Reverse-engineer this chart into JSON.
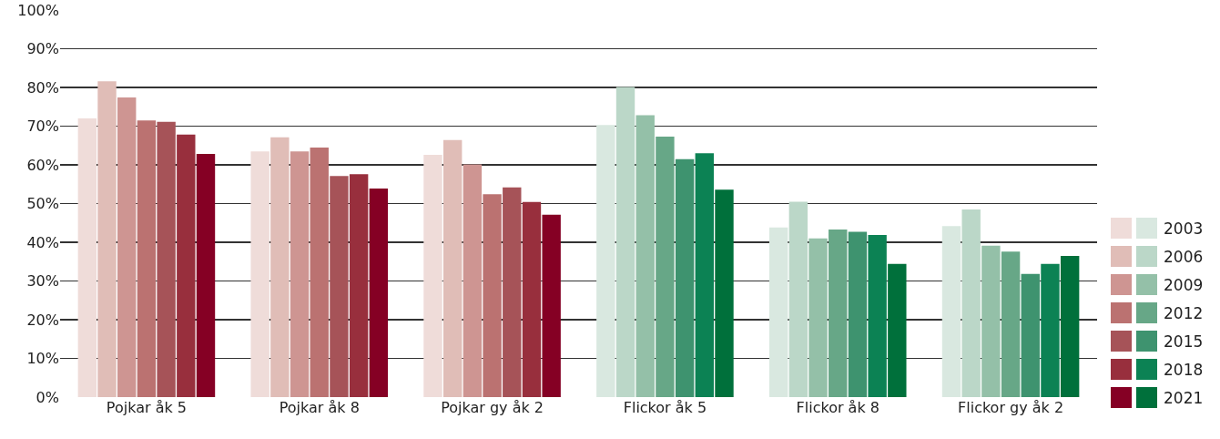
{
  "chart_data": {
    "type": "bar",
    "categories": [
      "Pojkar åk 5",
      "Pojkar åk 8",
      "Pojkar gy åk 2",
      "Flickor åk 5",
      "Flickor åk 8",
      "Flickor gy åk 2"
    ],
    "series": [
      {
        "name": "2003",
        "colors": [
          "#efdcd9",
          "#efdcd9",
          "#efdcd9",
          "#d9e8e0",
          "#d9e8e0",
          "#d9e8e0"
        ],
        "values": [
          72.0,
          63.5,
          62.6,
          70.3,
          43.8,
          44.2
        ]
      },
      {
        "name": "2006",
        "colors": [
          "#e0bdb7",
          "#e0bdb7",
          "#e0bdb7",
          "#bbd7c8",
          "#bbd7c8",
          "#bbd7c8"
        ],
        "values": [
          81.6,
          67.1,
          66.4,
          80.1,
          50.5,
          48.5
        ]
      },
      {
        "name": "2009",
        "colors": [
          "#ce9592",
          "#ce9592",
          "#ce9592",
          "#94c0a8",
          "#94c0a8",
          "#94c0a8"
        ],
        "values": [
          77.4,
          63.5,
          60.1,
          72.8,
          41.0,
          39.1
        ]
      },
      {
        "name": "2012",
        "colors": [
          "#bb7271",
          "#bb7271",
          "#bb7271",
          "#67a787",
          "#67a787",
          "#67a787"
        ],
        "values": [
          71.5,
          64.5,
          52.4,
          67.3,
          43.3,
          37.6
        ]
      },
      {
        "name": "2015",
        "colors": [
          "#a65358",
          "#a65358",
          "#a65358",
          "#3e936f",
          "#3e936f",
          "#3e936f"
        ],
        "values": [
          71.1,
          57.1,
          54.2,
          61.5,
          42.7,
          31.8
        ]
      },
      {
        "name": "2018",
        "colors": [
          "#982f3d",
          "#982f3d",
          "#982f3d",
          "#0c8254",
          "#0c8254",
          "#0c8254"
        ],
        "values": [
          67.8,
          57.6,
          50.4,
          63.0,
          41.9,
          34.4
        ]
      },
      {
        "name": "2021",
        "colors": [
          "#850024",
          "#850024",
          "#850024",
          "#00703b",
          "#00703b",
          "#00703b"
        ],
        "values": [
          62.8,
          53.9,
          47.1,
          53.6,
          34.4,
          36.5
        ]
      }
    ],
    "ylim": [
      0,
      100
    ],
    "yticks": [
      {
        "value": 0,
        "label": "0%"
      },
      {
        "value": 10,
        "label": "10%"
      },
      {
        "value": 20,
        "label": "20%"
      },
      {
        "value": 30,
        "label": "30%"
      },
      {
        "value": 40,
        "label": "40%"
      },
      {
        "value": 50,
        "label": "50%"
      },
      {
        "value": 60,
        "label": "60%"
      },
      {
        "value": 70,
        "label": "70%"
      },
      {
        "value": 80,
        "label": "80%"
      },
      {
        "value": 90,
        "label": "90%"
      },
      {
        "value": 100,
        "label": "100%"
      }
    ],
    "grid": "y",
    "legend": "bottom right"
  }
}
